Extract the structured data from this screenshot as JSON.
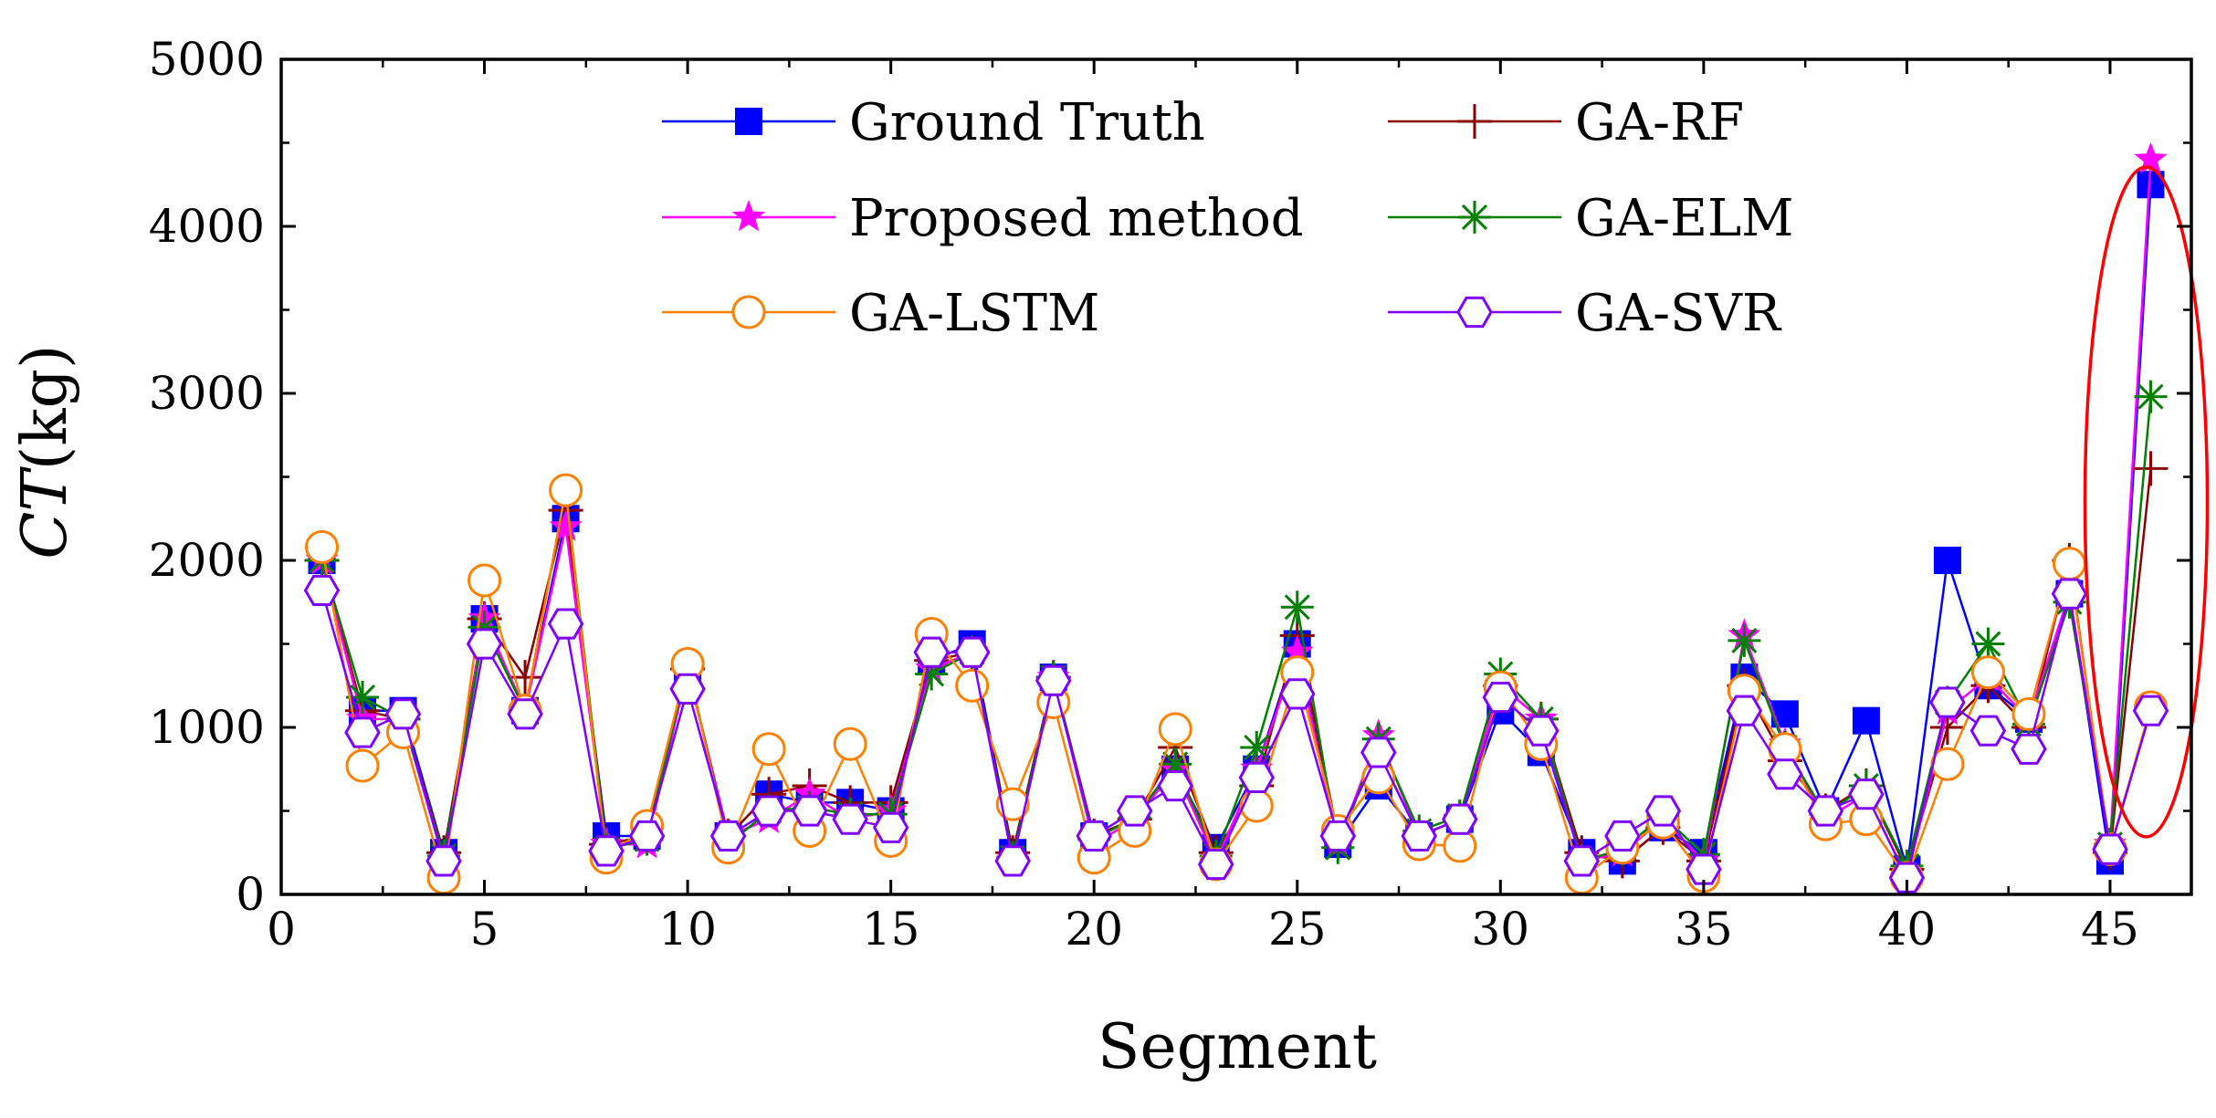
{
  "chart_data": {
    "type": "line",
    "xlabel": "Segment",
    "ylabel_italic": "CT",
    "ylabel_unit": "(kg)",
    "xlim": [
      0,
      47
    ],
    "ylim": [
      0,
      5000
    ],
    "xticks": [
      0,
      5,
      10,
      15,
      20,
      25,
      30,
      35,
      40,
      45
    ],
    "yticks": [
      0,
      1000,
      2000,
      3000,
      4000,
      5000
    ],
    "grid": false,
    "legend_position": "top",
    "highlight": {
      "shape": "ellipse",
      "color": "#ff0000",
      "around_segment": 46
    },
    "x": [
      1,
      2,
      3,
      4,
      5,
      6,
      7,
      8,
      9,
      10,
      11,
      12,
      13,
      14,
      15,
      16,
      17,
      18,
      19,
      20,
      21,
      22,
      23,
      24,
      25,
      26,
      27,
      28,
      29,
      30,
      31,
      32,
      33,
      34,
      35,
      36,
      37,
      38,
      39,
      40,
      41,
      42,
      43,
      44,
      45,
      46
    ],
    "series": [
      {
        "name": "Ground Truth",
        "color": "#0000ff",
        "marker": "square",
        "values": [
          2000,
          1100,
          1100,
          250,
          1650,
          1100,
          2250,
          350,
          350,
          1350,
          350,
          600,
          550,
          550,
          500,
          1400,
          1500,
          250,
          1300,
          350,
          450,
          750,
          280,
          750,
          1500,
          300,
          650,
          350,
          450,
          1100,
          850,
          250,
          200,
          400,
          250,
          1300,
          1080,
          500,
          1040,
          150,
          2000,
          1250,
          1050,
          1800,
          200,
          4250
        ]
      },
      {
        "name": "GA-RF",
        "color": "#8b0000",
        "marker": "plus",
        "values": [
          2000,
          1100,
          1050,
          250,
          1650,
          1300,
          2300,
          300,
          350,
          1350,
          350,
          600,
          650,
          550,
          550,
          1400,
          1450,
          250,
          1300,
          350,
          450,
          880,
          250,
          650,
          1550,
          350,
          850,
          350,
          450,
          1250,
          1050,
          250,
          200,
          400,
          200,
          1250,
          800,
          500,
          650,
          150,
          1000,
          1250,
          1000,
          2000,
          250,
          2550
        ]
      },
      {
        "name": "Proposed method",
        "color": "#ff00ff",
        "marker": "star",
        "values": [
          2000,
          1050,
          1050,
          200,
          1650,
          1100,
          2200,
          300,
          300,
          1350,
          350,
          450,
          600,
          450,
          500,
          1350,
          1450,
          200,
          1300,
          300,
          450,
          750,
          200,
          750,
          1450,
          300,
          950,
          350,
          450,
          1250,
          1050,
          200,
          250,
          450,
          200,
          1550,
          900,
          450,
          600,
          100,
          1100,
          1300,
          1050,
          1800,
          300,
          4400
        ]
      },
      {
        "name": "GA-ELM",
        "color": "#008000",
        "marker": "asterisk",
        "values": [
          2000,
          1180,
          1050,
          230,
          1600,
          1100,
          2420,
          270,
          330,
          1380,
          300,
          500,
          520,
          480,
          480,
          1320,
          1450,
          220,
          1300,
          330,
          460,
          780,
          230,
          880,
          1720,
          280,
          930,
          380,
          470,
          1320,
          1050,
          200,
          270,
          470,
          240,
          1520,
          880,
          480,
          650,
          170,
          1150,
          1500,
          1020,
          1750,
          300,
          2980
        ]
      },
      {
        "name": "GA-LSTM",
        "color": "#ff8000",
        "marker": "circle",
        "values": [
          2080,
          770,
          970,
          100,
          1880,
          1100,
          2420,
          220,
          410,
          1380,
          280,
          870,
          380,
          900,
          320,
          1560,
          1250,
          540,
          1150,
          220,
          380,
          990,
          180,
          530,
          1330,
          380,
          700,
          300,
          290,
          1240,
          900,
          100,
          280,
          430,
          110,
          1220,
          870,
          420,
          450,
          100,
          780,
          1330,
          1080,
          1980,
          270,
          1120
        ]
      },
      {
        "name": "GA-SVR",
        "color": "#8000ff",
        "marker": "hexagon",
        "values": [
          1820,
          970,
          1080,
          200,
          1500,
          1080,
          1620,
          260,
          350,
          1230,
          350,
          500,
          500,
          450,
          400,
          1450,
          1450,
          200,
          1280,
          350,
          500,
          650,
          180,
          700,
          1200,
          350,
          850,
          350,
          450,
          1180,
          980,
          200,
          350,
          500,
          150,
          1100,
          720,
          500,
          600,
          100,
          1150,
          980,
          870,
          1800,
          270,
          1100
        ]
      }
    ]
  }
}
